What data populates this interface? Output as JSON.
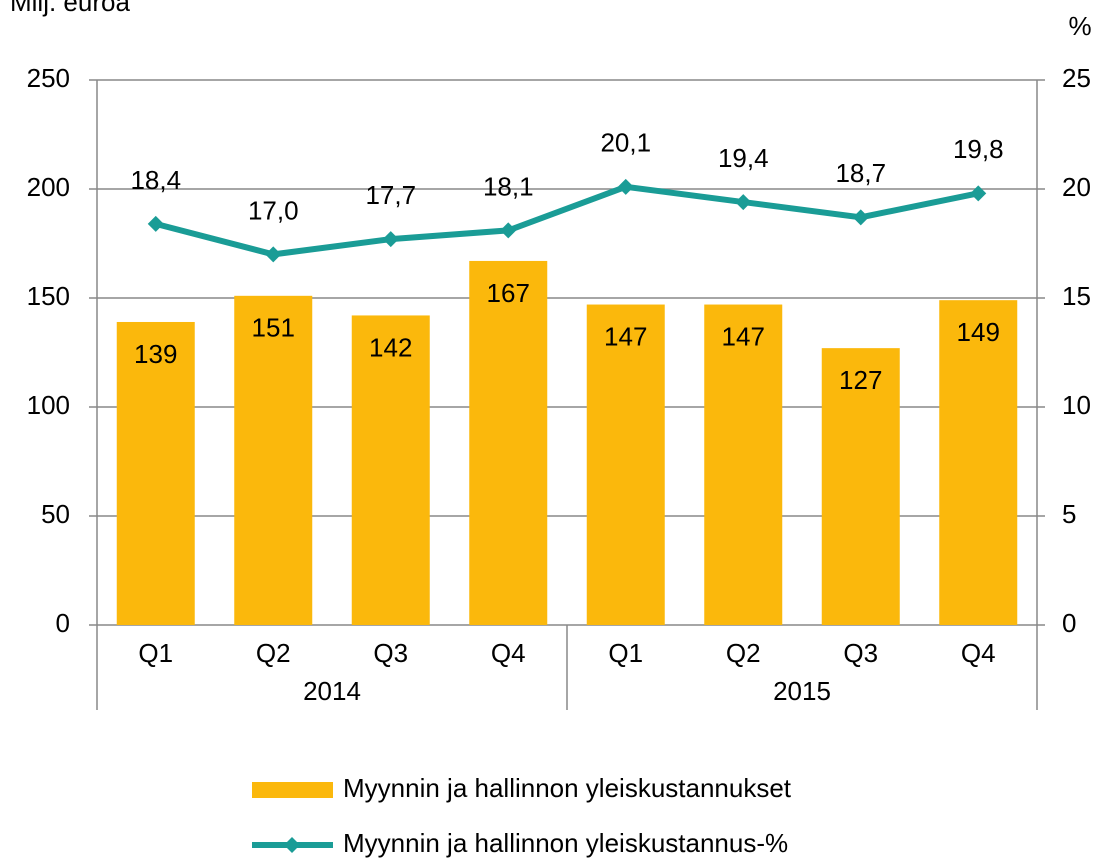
{
  "chart_data": {
    "type": "bar_line",
    "ylabel": "Milj. euroa",
    "y2label": "%",
    "categories": [
      "Q1",
      "Q2",
      "Q3",
      "Q4",
      "Q1",
      "Q2",
      "Q3",
      "Q4"
    ],
    "groups": [
      {
        "name": "2014",
        "span": 4
      },
      {
        "name": "2015",
        "span": 4
      }
    ],
    "series": [
      {
        "name": "Myynnin ja hallinnon yleiskustannukset",
        "type": "bar",
        "color": "#fbb80c",
        "values": [
          139,
          151,
          142,
          167,
          147,
          147,
          127,
          149
        ]
      },
      {
        "name": "Myynnin ja hallinnon yleiskustannus-%",
        "type": "line",
        "axis": "y2",
        "color": "#1a9c96",
        "values": [
          18.4,
          17.0,
          17.7,
          18.1,
          20.1,
          19.4,
          18.7,
          19.8
        ],
        "value_labels": [
          "18,4",
          "17,0",
          "17,7",
          "18,1",
          "20,1",
          "19,4",
          "18,7",
          "19,8"
        ]
      }
    ],
    "ylim": [
      0,
      250
    ],
    "yticks": [
      0,
      50,
      100,
      150,
      200,
      250
    ],
    "y2lim": [
      0,
      25
    ],
    "y2ticks": [
      0,
      5,
      10,
      15,
      20,
      25
    ],
    "grid": true
  }
}
